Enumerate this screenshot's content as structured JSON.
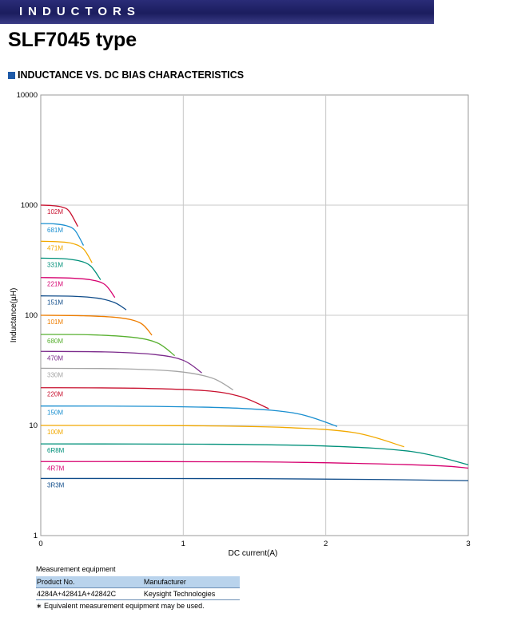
{
  "header": {
    "banner": "INDUCTORS",
    "title": "SLF7045 type"
  },
  "section": {
    "title": "INDUCTANCE VS. DC BIAS CHARACTERISTICS"
  },
  "chart_data": {
    "type": "line",
    "x_scale": "linear",
    "y_scale": "log",
    "xlim": [
      0,
      3
    ],
    "ylim": [
      1,
      10000
    ],
    "xlabel": "DC current(A)",
    "ylabel": "Inductance(µH)",
    "x_ticks": [
      "0",
      "1",
      "2",
      "3"
    ],
    "y_ticks": [
      "1",
      "10",
      "100",
      "1000",
      "10000"
    ],
    "grid": true,
    "series": [
      {
        "name": "102M",
        "color": "#c8102e",
        "x": [
          0,
          0.08,
          0.15,
          0.2,
          0.26
        ],
        "y": [
          1000,
          990,
          960,
          880,
          640
        ]
      },
      {
        "name": "681M",
        "color": "#1a8fd0",
        "x": [
          0,
          0.1,
          0.18,
          0.24,
          0.3
        ],
        "y": [
          680,
          675,
          650,
          590,
          430
        ]
      },
      {
        "name": "471M",
        "color": "#f2a900",
        "x": [
          0,
          0.12,
          0.22,
          0.3,
          0.36
        ],
        "y": [
          470,
          465,
          450,
          400,
          300
        ]
      },
      {
        "name": "331M",
        "color": "#00907a",
        "x": [
          0,
          0.15,
          0.27,
          0.35,
          0.42
        ],
        "y": [
          330,
          327,
          312,
          280,
          210
        ]
      },
      {
        "name": "221M",
        "color": "#d6006f",
        "x": [
          0,
          0.2,
          0.35,
          0.45,
          0.52
        ],
        "y": [
          220,
          218,
          210,
          190,
          145
        ]
      },
      {
        "name": "151M",
        "color": "#0f4c8a",
        "x": [
          0,
          0.22,
          0.4,
          0.52,
          0.6
        ],
        "y": [
          150,
          149,
          143,
          130,
          112
        ]
      },
      {
        "name": "101M",
        "color": "#ee7d00",
        "x": [
          0,
          0.3,
          0.55,
          0.7,
          0.78
        ],
        "y": [
          100,
          99,
          95,
          85,
          66
        ]
      },
      {
        "name": "680M",
        "color": "#58b030",
        "x": [
          0,
          0.35,
          0.65,
          0.82,
          0.94
        ],
        "y": [
          67,
          66.5,
          63,
          56,
          43
        ]
      },
      {
        "name": "470M",
        "color": "#7b2a8b",
        "x": [
          0,
          0.45,
          0.8,
          1.0,
          1.13
        ],
        "y": [
          47,
          46.5,
          44,
          39,
          30
        ]
      },
      {
        "name": "330M",
        "color": "#a5a5a5",
        "x": [
          0,
          0.55,
          0.95,
          1.2,
          1.35
        ],
        "y": [
          33,
          32.7,
          31,
          27,
          21
        ]
      },
      {
        "name": "220M",
        "color": "#c8102e",
        "x": [
          0,
          0.65,
          1.15,
          1.4,
          1.6
        ],
        "y": [
          22,
          21.8,
          20.7,
          18.3,
          14.2
        ]
      },
      {
        "name": "150M",
        "color": "#1a8fd0",
        "x": [
          0,
          0.8,
          1.4,
          1.8,
          2.08
        ],
        "y": [
          15,
          14.9,
          14.3,
          12.8,
          9.8
        ]
      },
      {
        "name": "100M",
        "color": "#f2a900",
        "x": [
          0,
          1.0,
          1.7,
          2.2,
          2.55
        ],
        "y": [
          10,
          9.95,
          9.6,
          8.6,
          6.4
        ]
      },
      {
        "name": "6R8M",
        "color": "#00907a",
        "x": [
          0,
          1.2,
          2.0,
          2.6,
          3.0
        ],
        "y": [
          6.8,
          6.75,
          6.5,
          5.8,
          4.4
        ]
      },
      {
        "name": "4R7M",
        "color": "#d6006f",
        "x": [
          0,
          1.5,
          2.3,
          2.8,
          3.0
        ],
        "y": [
          4.7,
          4.67,
          4.5,
          4.3,
          4.1
        ]
      },
      {
        "name": "3R3M",
        "color": "#0f4c8a",
        "x": [
          0,
          1.5,
          2.4,
          3.0
        ],
        "y": [
          3.3,
          3.29,
          3.23,
          3.15
        ]
      }
    ]
  },
  "footer": {
    "title": "Measurement equipment",
    "col_product": "Product No.",
    "col_manufacturer": "Manufacturer",
    "product": "4284A+42841A+42842C",
    "manufacturer": "Keysight Technologies",
    "note": "∗ Equivalent measurement equipment may be used."
  }
}
